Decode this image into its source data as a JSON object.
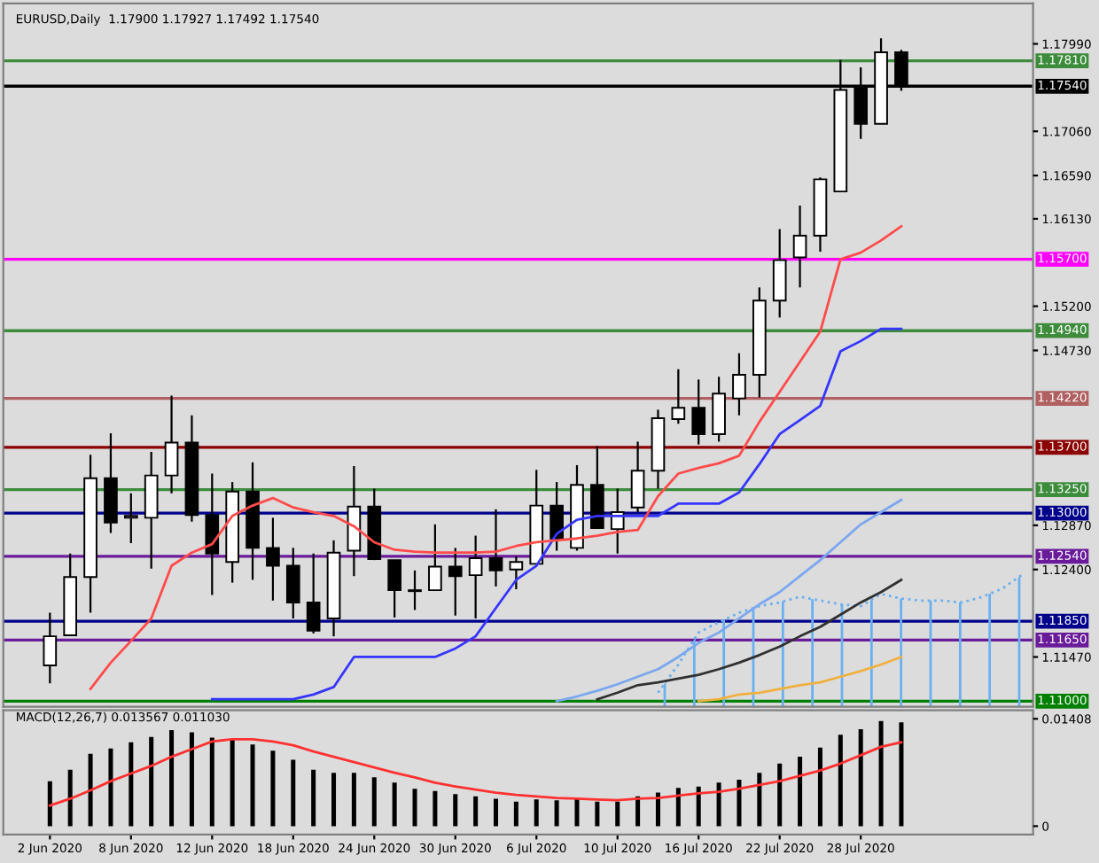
{
  "chart_data": [
    {
      "type": "candlestick",
      "title": "EURUSD,Daily  1.17900 1.17927 1.17492 1.17540",
      "categories": [
        null,
        null,
        null,
        null,
        null,
        null,
        null,
        null,
        null,
        null,
        null,
        null,
        null,
        null,
        null,
        null,
        null,
        null,
        null,
        null,
        null,
        null,
        null,
        null,
        null,
        null,
        null,
        null,
        null,
        null,
        null,
        null,
        null,
        null,
        null,
        null,
        null,
        null,
        null,
        null,
        null,
        null,
        null,
        null,
        null,
        null,
        null,
        null,
        null
      ],
      "ohlc": [
        [
          1.1138,
          1.1194,
          1.1119,
          1.1169
        ],
        [
          1.117,
          1.1257,
          1.1169,
          1.1232
        ],
        [
          1.1232,
          1.1362,
          1.1194,
          1.1337
        ],
        [
          1.1337,
          1.1385,
          1.1279,
          1.129
        ],
        [
          1.1295,
          1.1321,
          1.1268,
          1.1297
        ],
        [
          1.1295,
          1.1365,
          1.1241,
          1.134
        ],
        [
          1.134,
          1.1425,
          1.1321,
          1.1375
        ],
        [
          1.1375,
          1.1404,
          1.1291,
          1.1298
        ],
        [
          1.1298,
          1.1342,
          1.1213,
          1.1257
        ],
        [
          1.1248,
          1.1333,
          1.1226,
          1.1323
        ],
        [
          1.1323,
          1.1354,
          1.1229,
          1.1263
        ],
        [
          1.1263,
          1.1295,
          1.1207,
          1.1244
        ],
        [
          1.1244,
          1.1263,
          1.1188,
          1.1205
        ],
        [
          1.1205,
          1.1257,
          1.1172,
          1.1175
        ],
        [
          1.1188,
          1.1271,
          1.1169,
          1.1258
        ],
        [
          1.126,
          1.135,
          1.1233,
          1.1307
        ],
        [
          1.1307,
          1.1326,
          1.125,
          1.1251
        ],
        [
          1.125,
          1.125,
          1.1189,
          1.1218
        ],
        [
          1.1218,
          1.1239,
          1.1197,
          1.1217
        ],
        [
          1.1218,
          1.1288,
          1.1218,
          1.1243
        ],
        [
          1.1243,
          1.1263,
          1.1191,
          1.1233
        ],
        [
          1.1234,
          1.1276,
          1.1188,
          1.1252
        ],
        [
          1.1252,
          1.1304,
          1.1222,
          1.1239
        ],
        [
          1.124,
          1.1254,
          1.1219,
          1.1248
        ],
        [
          1.1246,
          1.1346,
          1.1246,
          1.1308
        ],
        [
          1.1308,
          1.1333,
          1.126,
          1.1273
        ],
        [
          1.1263,
          1.1351,
          1.126,
          1.133
        ],
        [
          1.133,
          1.1371,
          1.1284,
          1.1284
        ],
        [
          1.1283,
          1.1326,
          1.1257,
          1.1301
        ],
        [
          1.1306,
          1.1376,
          1.1301,
          1.1345
        ],
        [
          1.1345,
          1.141,
          1.1326,
          1.1401
        ],
        [
          1.14,
          1.1453,
          1.1395,
          1.1412
        ],
        [
          1.1412,
          1.1442,
          1.1373,
          1.1384
        ],
        [
          1.1384,
          1.1445,
          1.1376,
          1.1427
        ],
        [
          1.1422,
          1.147,
          1.1404,
          1.1447
        ],
        [
          1.1447,
          1.154,
          1.1423,
          1.1526
        ],
        [
          1.1526,
          1.1602,
          1.1508,
          1.1569
        ],
        [
          1.1572,
          1.1627,
          1.154,
          1.1595
        ],
        [
          1.1595,
          1.1657,
          1.1578,
          1.1655
        ],
        [
          1.1642,
          1.1782,
          1.1642,
          1.175
        ],
        [
          1.1752,
          1.1774,
          1.1698,
          1.1714
        ],
        [
          1.1714,
          1.1805,
          1.1714,
          1.179
        ],
        [
          1.179,
          1.17927,
          1.17492,
          1.1754
        ],
        null,
        null,
        null,
        null,
        null,
        null
      ],
      "colors": [
        "#ffffff",
        "#ffffff",
        "#ffffff",
        "#000000",
        "#ffffff",
        "#ffffff",
        "#ffffff",
        "#000000",
        "#000000",
        "#ffffff",
        "#000000",
        "#000000",
        "#000000",
        "#000000",
        "#ffffff",
        "#ffffff",
        "#000000",
        "#000000",
        "#000000",
        "#ffffff",
        "#000000",
        "#ffffff",
        "#000000",
        "#ffffff",
        "#ffffff",
        "#000000",
        "#ffffff",
        "#000000",
        "#ffffff",
        "#ffffff",
        "#ffffff",
        "#ffffff",
        "#000000",
        "#ffffff",
        "#ffffff",
        "#ffffff",
        "#ffffff",
        "#ffffff",
        "#ffffff",
        "#ffffff",
        "#000000",
        "#ffffff",
        "#000000",
        null,
        null,
        null,
        null,
        null,
        null
      ],
      "series": [
        {
          "type": "area",
          "color": "#6ab0f0",
          "line_style": "dotted",
          "values": [
            null,
            null,
            null,
            null,
            null,
            null,
            null,
            null,
            null,
            null,
            null,
            null,
            null,
            null,
            null,
            null,
            null,
            null,
            null,
            null,
            null,
            null,
            null,
            null,
            null,
            null,
            null,
            null,
            null,
            null,
            1.1109,
            1.1139,
            1.1173,
            1.1184,
            1.1194,
            1.1201,
            1.1205,
            1.1211,
            1.1207,
            1.1203,
            1.1201,
            1.1214,
            1.1209,
            1.1207,
            1.1207,
            1.1205,
            1.1211,
            1.122,
            1.1235
          ]
        },
        {
          "type": "line",
          "color": "#f0b040",
          "values": [
            null,
            null,
            null,
            null,
            null,
            null,
            null,
            null,
            null,
            null,
            null,
            null,
            null,
            null,
            null,
            null,
            null,
            null,
            null,
            null,
            null,
            null,
            null,
            null,
            null,
            null,
            null,
            null,
            null,
            null,
            null,
            null,
            1.11,
            1.1102,
            1.1107,
            1.1109,
            1.1113,
            1.1117,
            1.112,
            1.1126,
            1.1132,
            1.1139,
            1.1147,
            null,
            null,
            null,
            null,
            null,
            null
          ]
        },
        {
          "type": "line",
          "color": "#303030",
          "values": [
            null,
            null,
            null,
            null,
            null,
            null,
            null,
            null,
            null,
            null,
            null,
            null,
            null,
            null,
            null,
            null,
            null,
            null,
            null,
            null,
            null,
            null,
            null,
            null,
            null,
            null,
            null,
            1.1102,
            1.1109,
            1.1117,
            1.112,
            1.1124,
            1.1128,
            1.1134,
            1.1141,
            1.1149,
            1.1158,
            1.1169,
            1.1179,
            1.1192,
            1.1205,
            1.1216,
            1.1229,
            null,
            null,
            null,
            null,
            null,
            null
          ]
        },
        {
          "type": "line",
          "color": "#7aa7f0",
          "values": [
            null,
            null,
            null,
            null,
            null,
            null,
            null,
            null,
            null,
            null,
            null,
            null,
            null,
            null,
            null,
            null,
            null,
            null,
            null,
            null,
            null,
            null,
            null,
            null,
            null,
            1.11,
            1.1105,
            1.1111,
            1.1118,
            1.1126,
            1.1134,
            1.1147,
            1.1162,
            1.1173,
            1.1188,
            1.1203,
            1.1216,
            1.1233,
            1.125,
            1.1269,
            1.1288,
            1.1301,
            1.1314,
            null,
            null,
            null,
            null,
            null,
            null
          ]
        },
        {
          "type": "line",
          "color": "#3535ff",
          "values": [
            null,
            null,
            null,
            null,
            null,
            null,
            null,
            null,
            1.1102,
            1.1102,
            1.1102,
            1.1102,
            1.1102,
            1.1107,
            1.1115,
            1.1147,
            1.1147,
            1.1147,
            1.1147,
            1.1147,
            1.1156,
            1.1169,
            1.1199,
            1.1229,
            1.1244,
            1.1278,
            1.1293,
            1.1297,
            1.1297,
            1.1297,
            1.1297,
            1.131,
            1.131,
            1.131,
            1.1322,
            1.1352,
            1.1384,
            1.1399,
            1.1414,
            1.1472,
            1.1483,
            1.1496,
            1.1496,
            null,
            null,
            null,
            null,
            null,
            null
          ]
        },
        {
          "type": "line",
          "color": "#ff4a4a",
          "values": [
            null,
            null,
            1.1113,
            1.1141,
            1.1164,
            1.1188,
            1.1244,
            1.1258,
            1.1267,
            1.1297,
            1.1308,
            1.1316,
            1.1306,
            1.1301,
            1.1297,
            1.1286,
            1.1269,
            1.1261,
            1.1259,
            1.1258,
            1.1258,
            1.1258,
            1.1259,
            1.1265,
            1.1269,
            1.1271,
            1.1273,
            1.1276,
            1.128,
            1.1282,
            1.1318,
            1.1342,
            1.1348,
            1.1353,
            1.1361,
            1.1397,
            1.1429,
            1.1461,
            1.1493,
            1.157,
            1.1577,
            1.159,
            1.1605,
            null,
            null,
            null,
            null,
            null,
            null
          ]
        }
      ],
      "ylim": [
        1.1094,
        1.1842
      ],
      "yticks": [
        {
          "value": 1.1799,
          "label": "1.17990"
        },
        {
          "value": 1.1706,
          "label": "1.17060"
        },
        {
          "value": 1.1659,
          "label": "1.16590"
        },
        {
          "value": 1.1613,
          "label": "1.16130"
        },
        {
          "value": 1.152,
          "label": "1.15200"
        },
        {
          "value": 1.1473,
          "label": "1.14730"
        },
        {
          "value": 1.1287,
          "label": "1.12870"
        },
        {
          "value": 1.124,
          "label": "1.12400"
        },
        {
          "value": 1.1147,
          "label": "1.11470"
        }
      ],
      "ref_lines": [
        {
          "axis": "y",
          "value": 1.1781,
          "label": "1.17810",
          "color": "#3c8c3c"
        },
        {
          "axis": "y",
          "value": 1.1754,
          "label": "1.17540",
          "color": "#000000"
        },
        {
          "axis": "y",
          "value": 1.157,
          "label": "1.15700",
          "color": "#ff00ff"
        },
        {
          "axis": "y",
          "value": 1.1494,
          "label": "1.14940",
          "color": "#3c8c3c"
        },
        {
          "axis": "y",
          "value": 1.1422,
          "label": "1.14220",
          "color": "#b06060"
        },
        {
          "axis": "y",
          "value": 1.137,
          "label": "1.13700",
          "color": "#8b0000"
        },
        {
          "axis": "y",
          "value": 1.1325,
          "label": "1.13250",
          "color": "#3c8c3c"
        },
        {
          "axis": "y",
          "value": 1.13,
          "label": "1.13000",
          "color": "#00008b"
        },
        {
          "axis": "y",
          "value": 1.1254,
          "label": "1.12540",
          "color": "#6a1b9a"
        },
        {
          "axis": "y",
          "value": 1.1185,
          "label": "1.11850",
          "color": "#00008b"
        },
        {
          "axis": "y",
          "value": 1.1165,
          "label": "1.11650",
          "color": "#6a1b9a"
        },
        {
          "axis": "y",
          "value": 1.11,
          "label": "1.11000",
          "color": "#008000"
        }
      ],
      "tick_labels": "y"
    },
    {
      "type": "bar",
      "title": "MACD(12,26,7) 0.013567 0.011030",
      "categories": [
        "2 Jun 2020",
        null,
        null,
        null,
        "8 Jun 2020",
        null,
        null,
        null,
        "12 Jun 2020",
        null,
        null,
        null,
        "18 Jun 2020",
        null,
        null,
        null,
        "24 Jun 2020",
        null,
        null,
        null,
        "30 Jun 2020",
        null,
        null,
        null,
        "6 Jul 2020",
        null,
        null,
        null,
        "10 Jul 2020",
        null,
        null,
        null,
        "16 Jul 2020",
        null,
        null,
        null,
        "22 Jul 2020",
        null,
        null,
        null,
        "28 Jul 2020",
        null,
        null,
        null,
        null,
        null,
        null,
        null,
        null
      ],
      "series": [
        {
          "type": "bar",
          "color": "#000000",
          "values": [
            0.0059,
            0.0074,
            0.0095,
            0.0102,
            0.011,
            0.0117,
            0.0126,
            0.0123,
            0.0116,
            0.0114,
            0.0107,
            0.0099,
            0.0087,
            0.0074,
            0.007,
            0.007,
            0.0064,
            0.0057,
            0.0049,
            0.0046,
            0.0042,
            0.0039,
            0.0036,
            0.0032,
            0.0035,
            0.0034,
            0.0036,
            0.0032,
            0.0032,
            0.0039,
            0.0044,
            0.005,
            0.0052,
            0.0057,
            0.0061,
            0.007,
            0.0082,
            0.0091,
            0.0103,
            0.012,
            0.0127,
            0.0138,
            0.0136,
            null,
            null,
            null,
            null,
            null,
            null
          ]
        },
        {
          "type": "line",
          "color": "#ff3030",
          "values": [
            0.0027,
            0.0036,
            0.0047,
            0.0059,
            0.0069,
            0.0079,
            0.0091,
            0.0101,
            0.0111,
            0.0114,
            0.0114,
            0.0111,
            0.0106,
            0.0098,
            0.0091,
            0.0084,
            0.0077,
            0.007,
            0.0064,
            0.0057,
            0.0052,
            0.0048,
            0.0044,
            0.0041,
            0.0039,
            0.0037,
            0.0036,
            0.0035,
            0.0034,
            0.0036,
            0.0037,
            0.004,
            0.0043,
            0.0045,
            0.0049,
            0.0054,
            0.0059,
            0.0066,
            0.0073,
            0.0082,
            0.0093,
            0.0104,
            0.011,
            null,
            null,
            null,
            null,
            null,
            null
          ]
        }
      ],
      "ylim": [
        -0.0011,
        0.0152
      ],
      "yticks": [
        {
          "value": 0.01408,
          "label": "0.01408"
        },
        0
      ]
    }
  ]
}
